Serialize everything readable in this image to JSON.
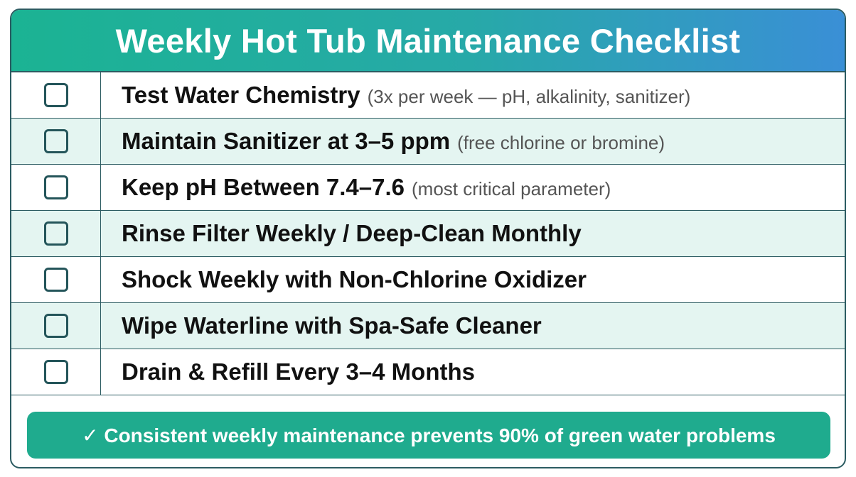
{
  "title": "Weekly Hot Tub Maintenance Checklist",
  "items": [
    {
      "task": "Test Water Chemistry",
      "note": "(3x per week — pH, alkalinity, sanitizer)"
    },
    {
      "task": "Maintain Sanitizer at 3–5 ppm",
      "note": "(free chlorine or bromine)"
    },
    {
      "task": "Keep pH Between 7.4–7.6",
      "note": "(most critical parameter)"
    },
    {
      "task": "Rinse Filter Weekly / Deep-Clean Monthly"
    },
    {
      "task": "Shock Weekly with Non-Chlorine Oxidizer"
    },
    {
      "task": "Wipe Waterline with Spa-Safe Cleaner"
    },
    {
      "task": "Drain & Refill Every 3–4 Months"
    }
  ],
  "footer": "✓ Consistent weekly maintenance prevents 90% of green water problems"
}
